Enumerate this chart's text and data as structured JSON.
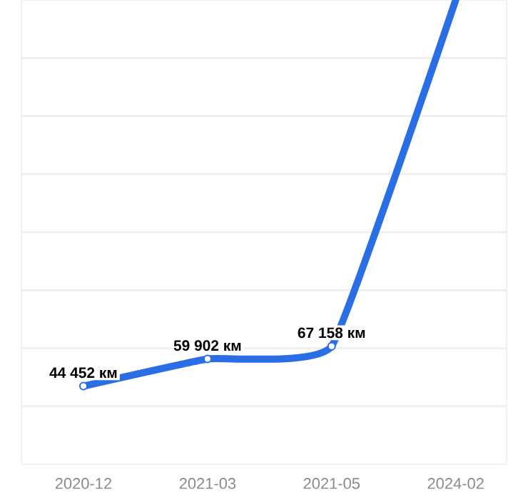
{
  "chart_data": {
    "type": "line",
    "categories": [
      "2020-12",
      "2021-03",
      "2021-05",
      "2024-02"
    ],
    "series": [
      {
        "color": "#2a6ee6",
        "values": [
          44452,
          59902,
          67158,
          264000
        ],
        "value_labels": [
          "44 452 км",
          "59 902 км",
          "67 158 км",
          null
        ]
      }
    ],
    "ylim": [
      0,
      264000
    ],
    "yticks": [
      {
        "value": 33000,
        "label": null
      },
      {
        "value": 66000,
        "label": null
      },
      {
        "value": 99000,
        "label": null
      },
      {
        "value": 132000,
        "label": null
      },
      {
        "value": 165000,
        "label": null
      },
      {
        "value": 198000,
        "label": null
      },
      {
        "value": 231000,
        "label": null
      }
    ],
    "grid": "y",
    "marker": "circle",
    "tick_labels": "x"
  }
}
